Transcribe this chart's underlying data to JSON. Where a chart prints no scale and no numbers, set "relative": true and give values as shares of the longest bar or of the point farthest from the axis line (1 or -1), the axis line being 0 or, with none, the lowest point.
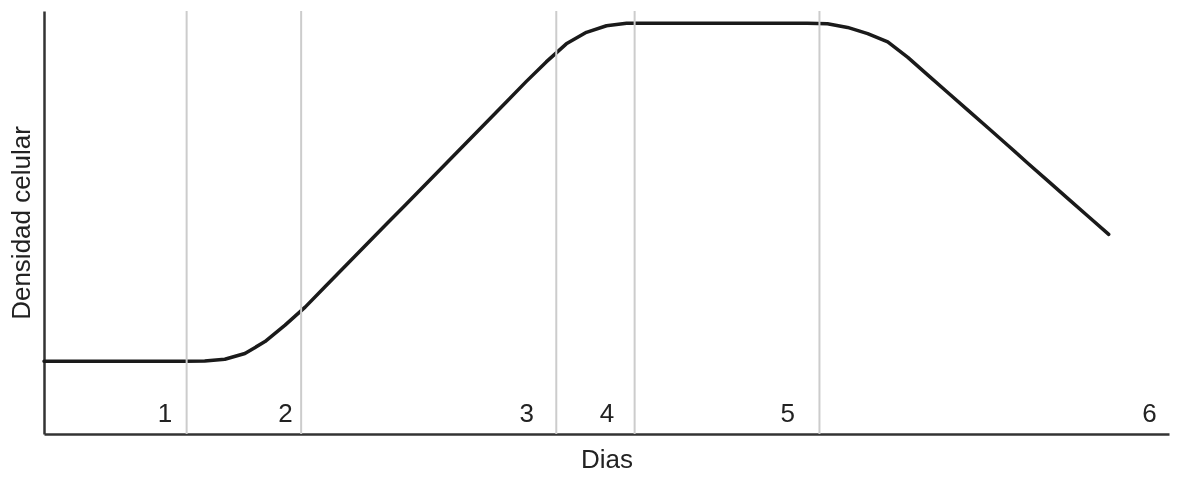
{
  "chart_data": {
    "type": "line",
    "relative": true,
    "xlabel": "Dias",
    "ylabel": "Densidad celular",
    "categories": [
      null,
      null,
      null,
      null,
      null,
      null,
      "1",
      null,
      null,
      null,
      null,
      null,
      "2",
      null,
      null,
      null,
      null,
      null,
      null,
      null,
      null,
      null,
      null,
      null,
      "3",
      null,
      null,
      null,
      "4",
      null,
      null,
      null,
      null,
      null,
      null,
      null,
      null,
      "5",
      null,
      null,
      null,
      null,
      null,
      null,
      null,
      null,
      null,
      null,
      null,
      null,
      null,
      null,
      null,
      null,
      null,
      "6",
      null
    ],
    "series": [
      {
        "color": "#1a1a1a",
        "values": [
          0.177,
          0.177,
          0.177,
          0.177,
          0.177,
          0.177,
          0.177,
          0.177,
          0.178,
          0.182,
          0.196,
          0.225,
          0.265,
          0.309,
          0.359,
          0.409,
          0.459,
          0.509,
          0.558,
          0.608,
          0.658,
          0.708,
          0.758,
          0.808,
          0.858,
          0.906,
          0.95,
          0.978,
          0.994,
          1,
          1,
          1,
          1,
          1,
          1,
          1,
          1,
          1,
          1,
          0.999,
          0.99,
          0.975,
          0.955,
          0.917,
          0.874,
          0.831,
          0.788,
          0.745,
          0.702,
          0.658,
          0.615,
          0.572,
          0.529,
          0.486,
          null,
          null,
          null
        ]
      }
    ],
    "marker": "none",
    "line_style": "solid"
  }
}
